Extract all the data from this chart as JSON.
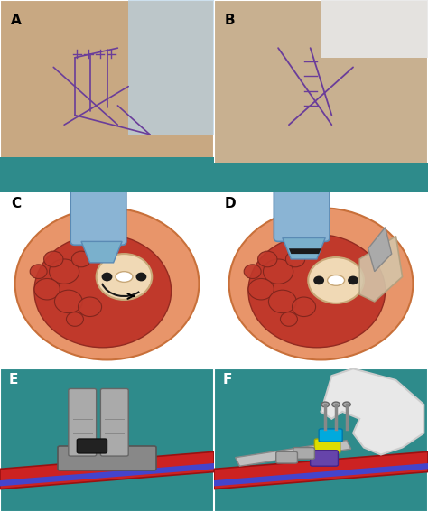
{
  "figure_width": 4.74,
  "figure_height": 5.67,
  "dpi": 100,
  "panels": [
    "A",
    "B",
    "C",
    "D",
    "E",
    "F"
  ],
  "panel_positions": {
    "A": [
      0.0,
      0.625,
      0.5,
      0.375
    ],
    "B": [
      0.5,
      0.625,
      0.5,
      0.375
    ],
    "C": [
      0.0,
      0.28,
      0.5,
      0.345
    ],
    "D": [
      0.5,
      0.28,
      0.5,
      0.345
    ],
    "E": [
      0.0,
      0.0,
      0.5,
      0.28
    ],
    "F": [
      0.5,
      0.0,
      0.5,
      0.28
    ]
  },
  "label_fontsize": 11,
  "label_color": "#000000",
  "label_fontweight": "bold",
  "bg_A": "#c8a882",
  "bg_B": "#c8b090",
  "bg_C": "#e8956a",
  "bg_D": "#e8956a",
  "bg_E": "#3a9090",
  "bg_F": "#3a9090",
  "border_color": "#ffffff",
  "border_width": 1.5
}
